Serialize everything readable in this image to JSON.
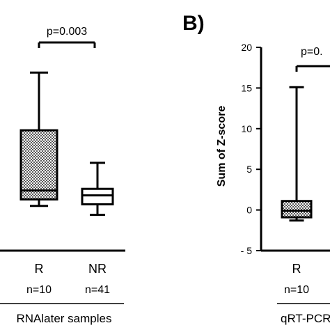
{
  "chart_data": [
    {
      "type": "box",
      "panel_label": "",
      "ylabel": "",
      "yticks": [],
      "group_label": "RNAlater samples",
      "categories": [
        "R",
        "NR"
      ],
      "n_labels": [
        "n=10",
        "n=41"
      ],
      "boxes": [
        {
          "category": "R",
          "whisker_low": 0.5,
          "q1": 1.3,
          "median": 2.4,
          "q3": 9.8,
          "whisker_high": 16.9,
          "fill": "checkered"
        },
        {
          "category": "NR",
          "whisker_low": -0.6,
          "q1": 0.7,
          "median": 1.8,
          "q3": 2.6,
          "whisker_high": 5.8,
          "fill": "white"
        }
      ],
      "comparison": {
        "from": "R",
        "to": "NR",
        "label": "p=0.003"
      },
      "ylim": [
        -5,
        20
      ]
    },
    {
      "type": "box",
      "panel_label": "B)",
      "ylabel": "Sum of Z-score",
      "yticks": [
        -5,
        0,
        5,
        10,
        15,
        20
      ],
      "tick_labels": [
        "- 5",
        "0",
        "5",
        "10",
        "15",
        "20"
      ],
      "group_label": "qRT-PCR",
      "categories": [
        "R"
      ],
      "n_labels": [
        "n=10"
      ],
      "boxes": [
        {
          "category": "R",
          "whisker_low": -1.3,
          "q1": -0.9,
          "median": -0.1,
          "q3": 1.1,
          "whisker_high": 15.1,
          "fill": "checkered"
        }
      ],
      "comparison": {
        "from": "R",
        "label": "p=0."
      },
      "ylim": [
        -5,
        20
      ]
    }
  ],
  "colors": {
    "ink": "#000000",
    "box_fill": "#6e6e6e"
  }
}
